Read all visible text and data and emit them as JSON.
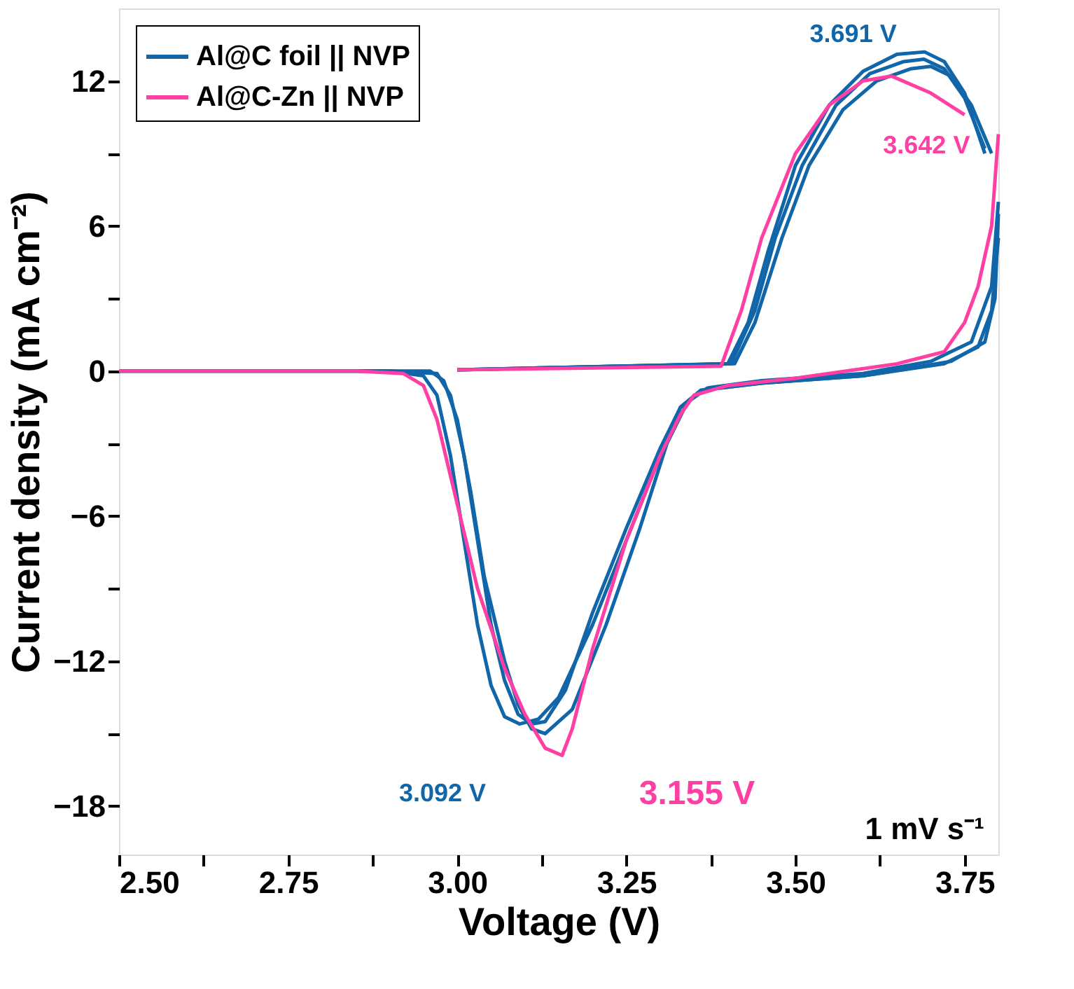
{
  "chart_data": {
    "type": "line",
    "xlabel": "Voltage (V)",
    "ylabel": "Current density (mA cm⁻²)",
    "xlim": [
      2.5,
      3.8
    ],
    "ylim": [
      -20,
      15
    ],
    "xticks": [
      {
        "value": 2.5,
        "label": "2.50"
      },
      {
        "value": 2.625,
        "label": null
      },
      {
        "value": 2.75,
        "label": "2.75"
      },
      {
        "value": 2.875,
        "label": null
      },
      {
        "value": 3.0,
        "label": "3.00"
      },
      {
        "value": 3.125,
        "label": null
      },
      {
        "value": 3.25,
        "label": "3.25"
      },
      {
        "value": 3.375,
        "label": null
      },
      {
        "value": 3.5,
        "label": "3.50"
      },
      {
        "value": 3.625,
        "label": null
      },
      {
        "value": 3.75,
        "label": "3.75"
      }
    ],
    "yticks": [
      {
        "value": -18,
        "label": "−18"
      },
      {
        "value": -15,
        "label": null
      },
      {
        "value": -12,
        "label": "−12"
      },
      {
        "value": -9,
        "label": null
      },
      {
        "value": -6,
        "label": "−6"
      },
      {
        "value": -3,
        "label": null
      },
      0,
      {
        "value": 3,
        "label": null
      },
      6,
      {
        "value": 9,
        "label": null
      },
      12
    ],
    "grid": false,
    "legend": "top left",
    "marker": "none",
    "line_style": "solid",
    "series": [
      {
        "name": "Al@C foil || NVP",
        "color": "#1066a8",
        "x": [
          3.8,
          3.79,
          3.77,
          3.72,
          3.6,
          3.45,
          3.36,
          3.33,
          3.3,
          3.25,
          3.2,
          3.15,
          3.12,
          3.092,
          3.07,
          3.05,
          3.03,
          3.01,
          2.99,
          2.97,
          2.95,
          2.9,
          2.5
        ],
        "values": [
          5.5,
          2.5,
          1.0,
          0.3,
          -0.2,
          -0.5,
          -0.8,
          -1.5,
          -3.5,
          -7,
          -10.5,
          -13.5,
          -14.4,
          -14.6,
          -14.3,
          -13,
          -10.5,
          -7,
          -3.5,
          -1,
          -0.2,
          0,
          0
        ]
      },
      {
        "color": "#1066a8",
        "x": [
          3.0,
          3.4,
          3.43,
          3.46,
          3.5,
          3.55,
          3.6,
          3.65,
          3.691,
          3.72,
          3.75,
          3.78
        ],
        "values": [
          0.05,
          0.3,
          2,
          5,
          8.5,
          11,
          12.4,
          13.1,
          13.2,
          12.8,
          11.5,
          9
        ]
      },
      {
        "color": "#1066a8",
        "x": [
          3.8,
          3.795,
          3.78,
          3.73,
          3.6,
          3.45,
          3.36,
          3.33,
          3.3,
          3.25,
          3.2,
          3.16,
          3.13,
          3.11,
          3.09,
          3.07,
          3.05,
          3.03,
          3.01,
          2.99,
          2.97,
          2.9,
          2.5
        ],
        "values": [
          6.5,
          3,
          1.2,
          0.4,
          -0.2,
          -0.5,
          -0.8,
          -1.5,
          -3.2,
          -6.5,
          -10,
          -13.2,
          -14.5,
          -14.6,
          -14.2,
          -12.8,
          -10.5,
          -7,
          -3.5,
          -1,
          -0.1,
          0,
          0
        ]
      },
      {
        "color": "#1066a8",
        "x": [
          3.0,
          3.405,
          3.44,
          3.47,
          3.51,
          3.56,
          3.61,
          3.66,
          3.69,
          3.72,
          3.75,
          3.78
        ],
        "values": [
          0.05,
          0.3,
          2.5,
          5.5,
          8.5,
          11,
          12.3,
          12.8,
          12.9,
          12.5,
          11.3,
          9.2
        ]
      },
      {
        "color": "#1066a8",
        "x": [
          3.8,
          3.79,
          3.76,
          3.7,
          3.6,
          3.45,
          3.37,
          3.34,
          3.31,
          3.27,
          3.22,
          3.17,
          3.13,
          3.11,
          3.09,
          3.07,
          3.04,
          3.02,
          3.0,
          2.98,
          2.96,
          2.5
        ],
        "values": [
          7,
          3.5,
          1.2,
          0.4,
          -0.1,
          -0.4,
          -0.7,
          -1.3,
          -3,
          -6.5,
          -10.5,
          -14,
          -15.0,
          -14.8,
          -13.8,
          -12,
          -8.5,
          -5,
          -2,
          -0.4,
          0,
          0
        ]
      },
      {
        "color": "#1066a8",
        "x": [
          3.0,
          3.41,
          3.44,
          3.48,
          3.52,
          3.57,
          3.62,
          3.67,
          3.7,
          3.73,
          3.76,
          3.79
        ],
        "values": [
          0.05,
          0.3,
          2,
          5.5,
          8.5,
          10.8,
          12,
          12.5,
          12.6,
          12.2,
          11,
          9
        ]
      },
      {
        "name": "Al@C-Zn || NVP",
        "color": "#ff3fa4",
        "x": [
          3.8,
          3.79,
          3.77,
          3.75,
          3.72,
          3.65,
          3.5,
          3.4,
          3.35,
          3.33,
          3.3,
          3.25,
          3.2,
          3.17,
          3.155,
          3.13,
          3.1,
          3.07,
          3.03,
          3.0,
          2.97,
          2.95,
          2.92,
          2.85,
          2.5
        ],
        "values": [
          9.8,
          6,
          3.5,
          2,
          0.8,
          0.3,
          -0.3,
          -0.6,
          -1.0,
          -1.8,
          -3.5,
          -7,
          -11.5,
          -14.8,
          -15.9,
          -15.6,
          -14.2,
          -12.3,
          -9,
          -5.5,
          -2,
          -0.6,
          -0.1,
          0,
          0
        ]
      },
      {
        "color": "#ff3fa4",
        "x": [
          3.0,
          3.39,
          3.42,
          3.45,
          3.5,
          3.55,
          3.6,
          3.642,
          3.7,
          3.75
        ],
        "values": [
          0.05,
          0.2,
          2.5,
          5.5,
          9,
          11,
          12,
          12.2,
          11.5,
          10.6
        ]
      }
    ],
    "annotations": [
      {
        "text": "3.691 V",
        "x": 3.691,
        "y": 13.2
      },
      {
        "text": "3.642 V",
        "x": 3.642,
        "y": 12.2
      },
      {
        "text": "3.092 V",
        "x": 3.092,
        "y": -14.6
      },
      {
        "text": "3.155 V",
        "x": 3.155,
        "y": -15.9
      },
      "1 mV s⁻¹"
    ]
  }
}
